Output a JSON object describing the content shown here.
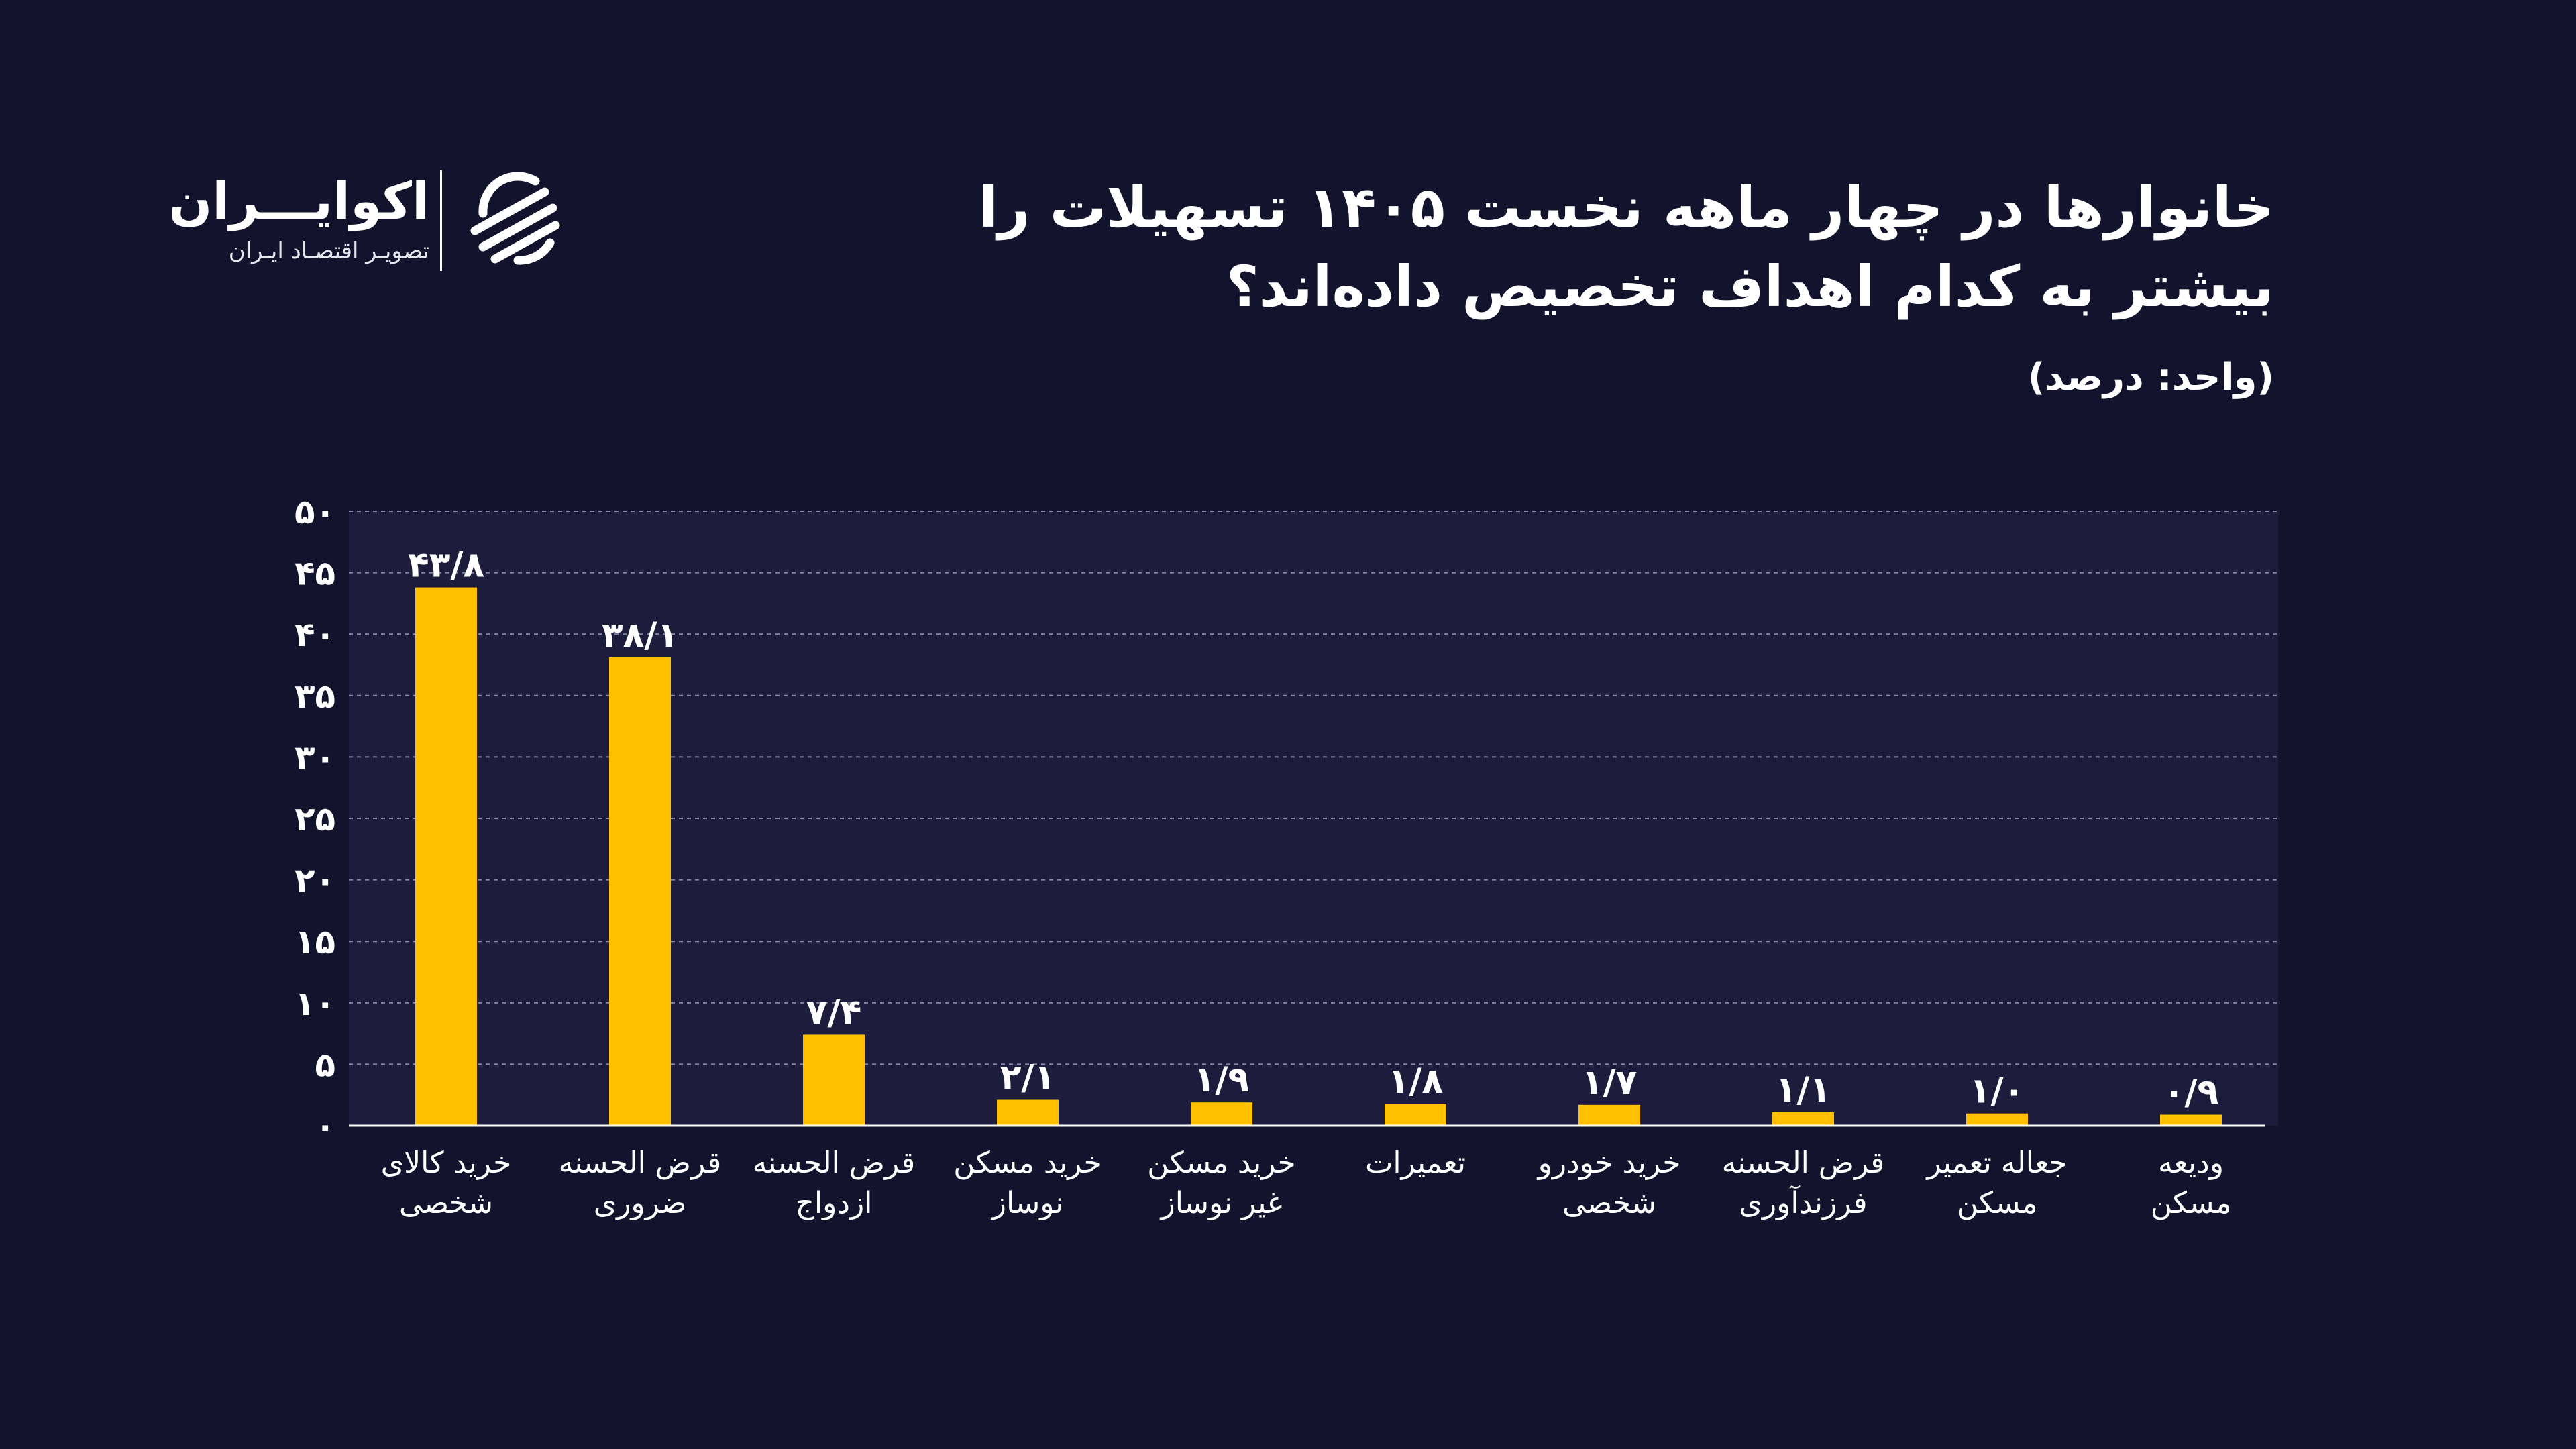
{
  "header": {
    "title_line1": "خانوارها در چهار ماهه نخست ۱۴۰۵ تسهیلات را",
    "title_line2": "بیشتر به کدام اهداف تخصیص داده‌اند؟",
    "unit": "(واحد: درصد)"
  },
  "brand": {
    "name": "اکوایـــران",
    "tagline": "تصویـر اقتصـاد ایـران"
  },
  "colors": {
    "background": "#13132e",
    "plot_bg": "#1e1c3d",
    "bar": "#ffc000",
    "text": "#ffffff"
  },
  "chart_data": {
    "type": "bar",
    "categories": [
      [
        "خرید کالای",
        "شخصی"
      ],
      [
        "قرض الحسنه",
        "ضروری"
      ],
      [
        "قرض الحسنه",
        "ازدواج"
      ],
      [
        "خرید مسکن",
        "نوساز"
      ],
      [
        "خرید مسکن",
        "غیر نوساز"
      ],
      [
        "تعمیرات"
      ],
      [
        "خرید خودرو",
        "شخصی"
      ],
      [
        "قرض الحسنه",
        "فرزندآوری"
      ],
      [
        "جعاله تعمیر",
        "مسکن"
      ],
      [
        "ودیعه",
        "مسکن"
      ]
    ],
    "values": [
      43.8,
      38.1,
      7.4,
      2.1,
      1.9,
      1.8,
      1.7,
      1.1,
      1.0,
      0.9
    ],
    "value_labels": [
      "۴۳/۸",
      "۳۸/۱",
      "۷/۴",
      "۲/۱",
      "۱/۹",
      "۱/۸",
      "۱/۷",
      "۱/۱",
      "۱/۰",
      "۰/۹"
    ],
    "yticks": [
      0,
      5,
      10,
      15,
      20,
      25,
      30,
      35,
      40,
      45,
      50
    ],
    "ytick_labels": [
      "۰",
      "۵",
      "۱۰",
      "۱۵",
      "۲۰",
      "۲۵",
      "۳۰",
      "۳۵",
      "۴۰",
      "۴۵",
      "۵۰"
    ],
    "ylim": [
      0,
      50
    ],
    "grid": true,
    "legend": "none"
  }
}
